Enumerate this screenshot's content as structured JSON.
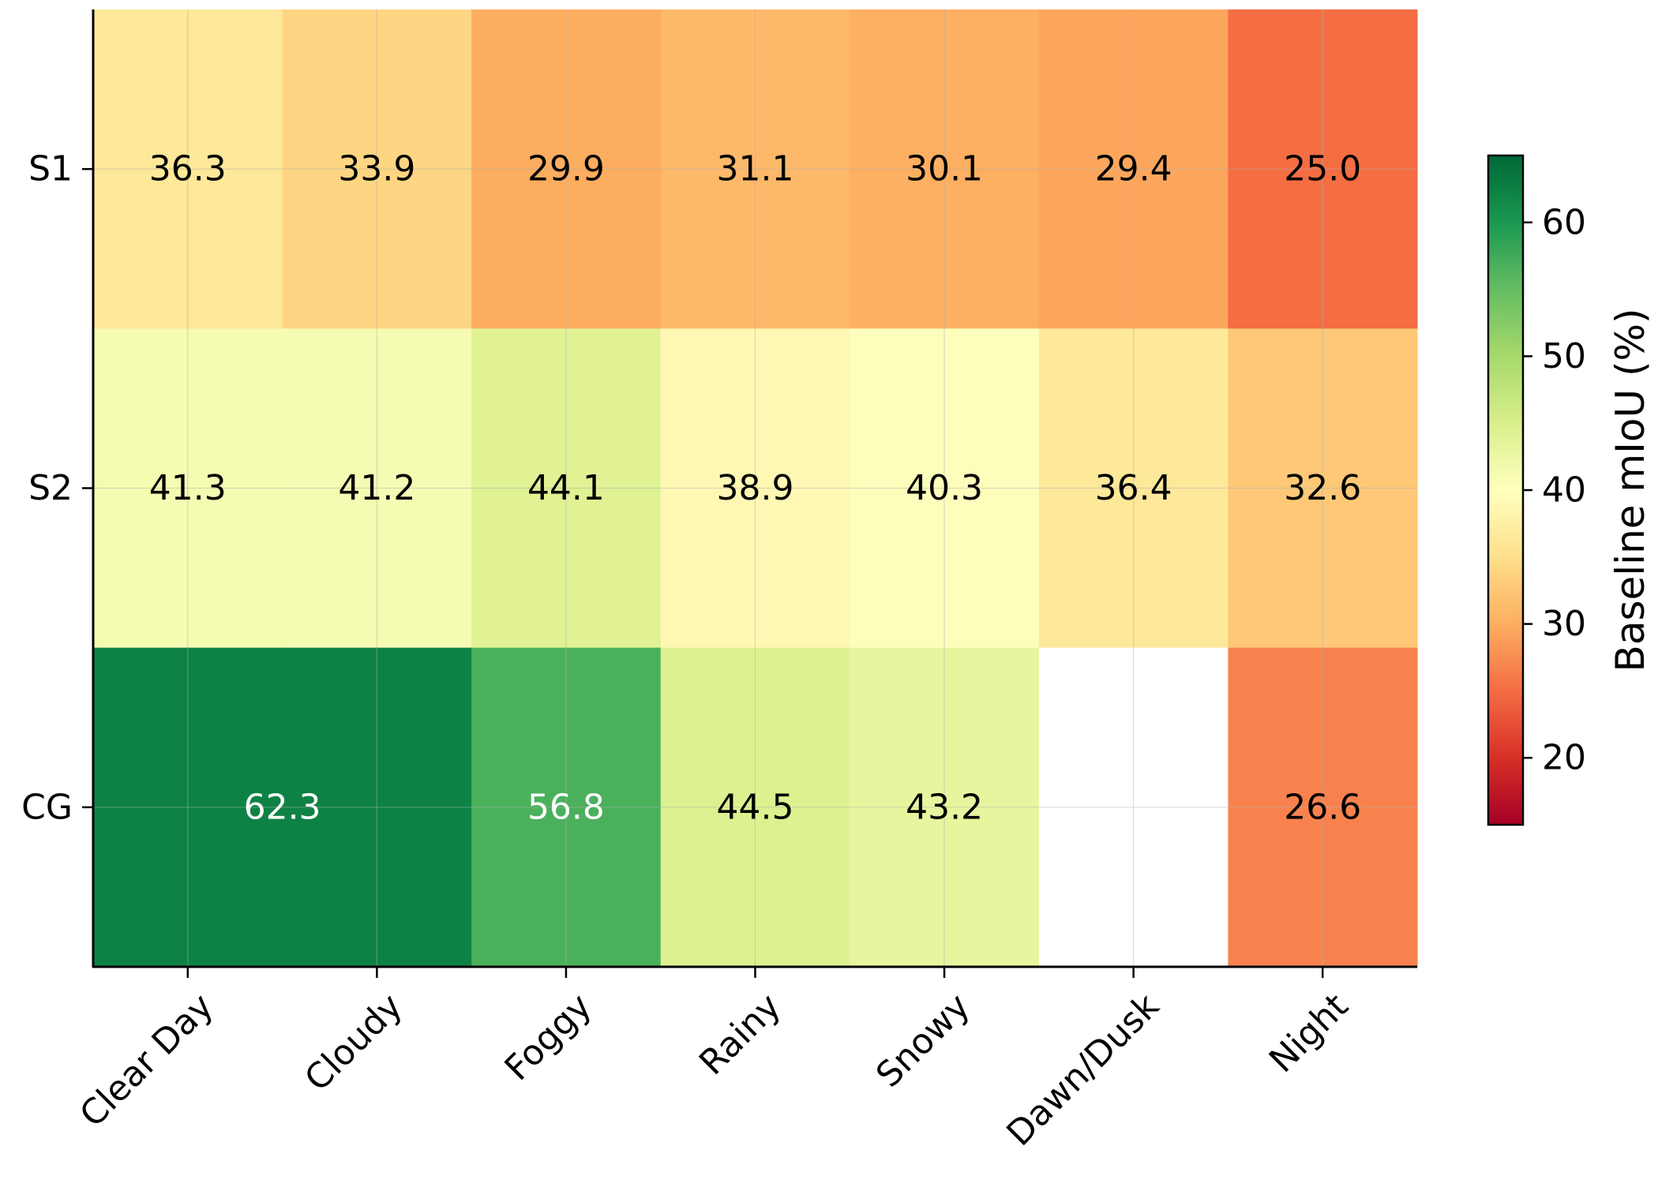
{
  "chart_data": {
    "type": "heatmap",
    "title": "",
    "xlabel": "",
    "ylabel": "",
    "x_categories": [
      "Clear Day",
      "Cloudy",
      "Foggy",
      "Rainy",
      "Snowy",
      "Dawn/Dusk",
      "Night"
    ],
    "y_categories": [
      "S1",
      "S2",
      "CG"
    ],
    "values": [
      [
        36.3,
        33.9,
        29.9,
        31.1,
        30.1,
        29.4,
        25.0
      ],
      [
        41.3,
        41.2,
        44.1,
        38.9,
        40.3,
        36.4,
        32.6
      ],
      [
        62.3,
        62.3,
        56.8,
        44.5,
        43.2,
        null,
        26.6
      ]
    ],
    "cell_labels": [
      [
        "36.3",
        "33.9",
        "29.9",
        "31.1",
        "30.1",
        "29.4",
        "25.0"
      ],
      [
        "41.3",
        "41.2",
        "44.1",
        "38.9",
        "40.3",
        "36.4",
        "32.6"
      ],
      [
        "62.3",
        "",
        "56.8",
        "44.5",
        "43.2",
        "",
        "26.6"
      ]
    ],
    "merged_cells": [
      {
        "row": 2,
        "col_start": 0,
        "col_end": 1,
        "label": "62.3"
      }
    ],
    "colormap": "RdYlGn",
    "vmin": 15,
    "vmax": 65,
    "colorbar": {
      "label": "Baseline mIoU (%)",
      "ticks": [
        20,
        30,
        40,
        50,
        60
      ],
      "tick_labels": [
        "20",
        "30",
        "40",
        "50",
        "60"
      ],
      "placement": "right"
    },
    "grid": true
  }
}
